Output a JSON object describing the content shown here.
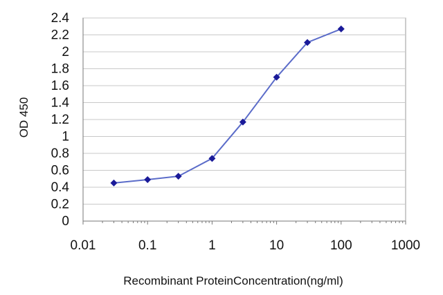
{
  "chart_data": {
    "type": "line",
    "title": "",
    "xlabel": "Recombinant ProteinConcentration(ng/ml)",
    "ylabel": "OD 450",
    "x_scale": "log",
    "xlim": [
      0.01,
      1000
    ],
    "ylim": [
      0,
      2.4
    ],
    "grid": "horizontal",
    "x_ticks": [
      "0.01",
      "0.1",
      "1",
      "10",
      "100",
      "1000"
    ],
    "y_ticks": [
      "0",
      "0.2",
      "0.4",
      "0.6",
      "0.8",
      "1",
      "1.2",
      "1.4",
      "1.6",
      "1.8",
      "2",
      "2.2",
      "2.4"
    ],
    "series": [
      {
        "x": [
          0.03,
          0.1,
          0.3,
          1,
          3,
          10,
          30,
          100
        ],
        "y": [
          0.45,
          0.49,
          0.53,
          0.74,
          1.17,
          1.7,
          2.11,
          2.27
        ]
      }
    ],
    "colors": {
      "line": "#5b6cc9",
      "marker": "#1a1a99",
      "grid": "#c8c8c8",
      "axis": "#777777"
    }
  }
}
